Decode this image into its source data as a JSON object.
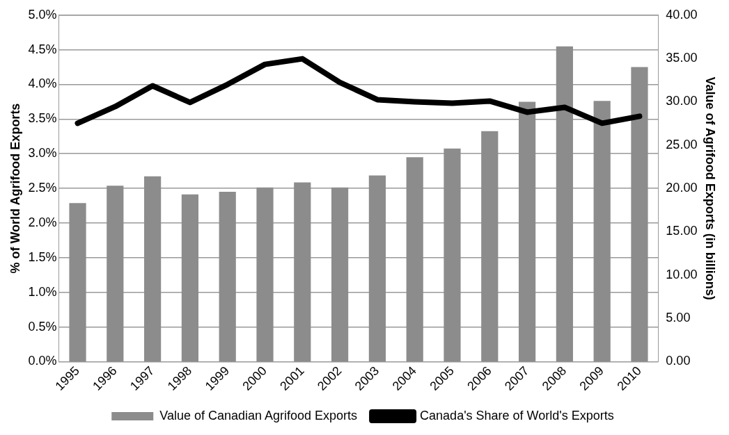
{
  "chart_data": {
    "type": "bar",
    "ylabel": "% of World Agrifood Exports",
    "y2label": "Value of Agrifood Exports (in billions)",
    "categories": [
      "1995",
      "1996",
      "1997",
      "1998",
      "1999",
      "2000",
      "2001",
      "2002",
      "2003",
      "2004",
      "2005",
      "2006",
      "2007",
      "2008",
      "2009",
      "2010"
    ],
    "series": [
      {
        "name": "Value of Canadian Agrifood Exports",
        "axis": "y2",
        "color": "#8c8c8c",
        "values": [
          18.3,
          20.3,
          21.4,
          19.3,
          19.6,
          20.1,
          20.7,
          20.1,
          21.5,
          23.6,
          24.6,
          26.6,
          30.0,
          36.4,
          30.1,
          34.0
        ]
      },
      {
        "name": "Canada's Share of World's Exports",
        "type": "line",
        "color": "#000000",
        "values": [
          3.44,
          3.68,
          3.98,
          3.74,
          4.0,
          4.29,
          4.37,
          4.03,
          3.78,
          3.75,
          3.73,
          3.76,
          3.6,
          3.67,
          3.44,
          3.54
        ]
      }
    ],
    "ylim": [
      0,
      5
    ],
    "yticks": [
      {
        "value": 0,
        "label": "0.0%"
      },
      {
        "value": 0.5,
        "label": "0.5%"
      },
      {
        "value": 1,
        "label": "1.0%"
      },
      {
        "value": 1.5,
        "label": "1.5%"
      },
      {
        "value": 2,
        "label": "2.0%"
      },
      {
        "value": 2.5,
        "label": "2.5%"
      },
      {
        "value": 3,
        "label": "3.0%"
      },
      {
        "value": 3.5,
        "label": "3.5%"
      },
      {
        "value": 4,
        "label": "4.0%"
      },
      {
        "value": 4.5,
        "label": "4.5%"
      },
      {
        "value": 5,
        "label": "5.0%"
      }
    ],
    "y2lim": [
      0,
      40
    ],
    "y2ticks": [
      {
        "value": 0,
        "label": "0.00"
      },
      {
        "value": 5,
        "label": "5.00"
      },
      {
        "value": 10,
        "label": "10.00"
      },
      {
        "value": 15,
        "label": "15.00"
      },
      {
        "value": 20,
        "label": "20.00"
      },
      {
        "value": 25,
        "label": "25.00"
      },
      {
        "value": 30,
        "label": "30.00"
      },
      {
        "value": 35,
        "label": "35.00"
      },
      {
        "value": 40,
        "label": "40.00"
      }
    ],
    "grid": "y",
    "legend": "bottom",
    "marker": "none",
    "line_style": "solid"
  }
}
